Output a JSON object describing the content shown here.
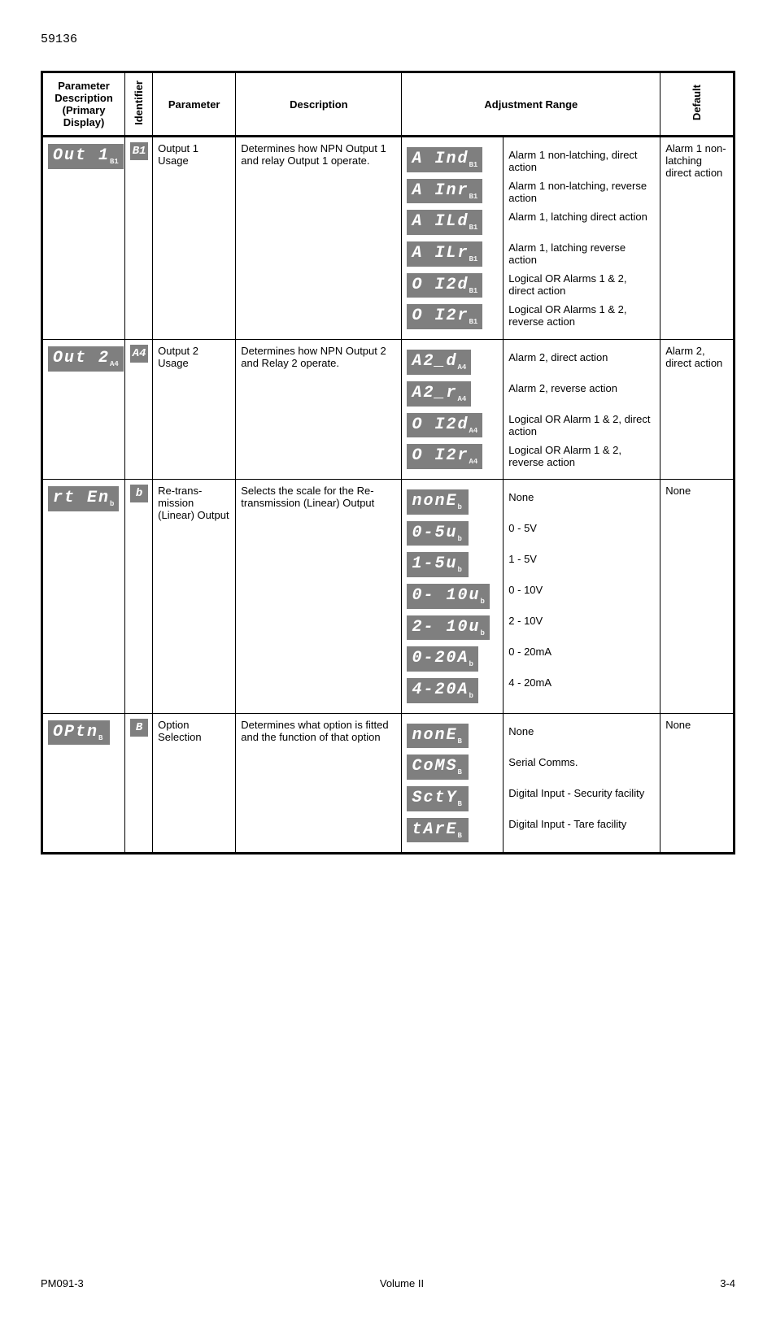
{
  "page_top": "59136",
  "headers": {
    "param_desc": "Parameter Description (Primary Display)",
    "identifier": "Identifier",
    "parameter": "Parameter",
    "description": "Description",
    "adjustment": "Adjustment Range",
    "default": "Default"
  },
  "rows": [
    {
      "primary_seg": "Out  1",
      "primary_dot": "B1",
      "id_icon": "B1",
      "parameter": "Output 1 Usage",
      "description": "Determines how NPN Output 1 and relay Output 1 operate.",
      "options": [
        {
          "seg": "A Ind",
          "dot": "B1",
          "meaning": "Alarm 1 non-latching, direct action"
        },
        {
          "seg": "A Inr",
          "dot": "B1",
          "meaning": "Alarm 1 non-latching, reverse action"
        },
        {
          "seg": "A ILd",
          "dot": "B1",
          "meaning": "Alarm 1, latching direct action"
        },
        {
          "seg": "A ILr",
          "dot": "B1",
          "meaning": "Alarm 1, latching reverse action"
        },
        {
          "seg": "O I2d",
          "dot": "B1",
          "meaning": "Logical OR Alarms 1 & 2, direct action"
        },
        {
          "seg": "O I2r",
          "dot": "B1",
          "meaning": "Logical OR Alarms 1 & 2, reverse action"
        }
      ],
      "default": "Alarm 1 non-latching direct action"
    },
    {
      "primary_seg": "Out 2",
      "primary_dot": "A4",
      "id_icon": "A4",
      "parameter": "Output 2 Usage",
      "description": "Determines how NPN Output 2 and Relay 2 operate.",
      "options": [
        {
          "seg": "A2_d",
          "dot": "A4",
          "meaning": "Alarm 2, direct action"
        },
        {
          "seg": "A2_r",
          "dot": "A4",
          "meaning": "Alarm 2, reverse action"
        },
        {
          "seg": "O I2d",
          "dot": "A4",
          "meaning": "Logical OR Alarm 1 & 2, direct action"
        },
        {
          "seg": "O I2r",
          "dot": "A4",
          "meaning": "Logical OR Alarm 1 & 2, reverse action"
        }
      ],
      "default": "Alarm 2, direct action"
    },
    {
      "primary_seg": "rt En",
      "primary_dot": "b",
      "id_icon": "b",
      "parameter": "Re-trans-mission (Linear) Output",
      "description": "Selects the scale for the Re-transmission (Linear) Output",
      "options": [
        {
          "seg": "nonE",
          "dot": "b",
          "meaning": "None"
        },
        {
          "seg": "0-5u",
          "dot": "b",
          "meaning": "0 - 5V"
        },
        {
          "seg": "1-5u",
          "dot": "b",
          "meaning": "1 - 5V"
        },
        {
          "seg": "0- 10u",
          "dot": "b",
          "meaning": "0 - 10V"
        },
        {
          "seg": "2- 10u",
          "dot": "b",
          "meaning": "2 - 10V"
        },
        {
          "seg": "0-20A",
          "dot": "b",
          "meaning": "0 - 20mA"
        },
        {
          "seg": "4-20A",
          "dot": "b",
          "meaning": "4 - 20mA"
        }
      ],
      "default": "None"
    },
    {
      "primary_seg": "OPtn",
      "primary_dot": "B",
      "id_icon": "B",
      "parameter": "Option Selection",
      "description": "Determines what option is fitted and the function of that option",
      "options": [
        {
          "seg": "nonE",
          "dot": "B",
          "meaning": "None"
        },
        {
          "seg": "CoMS",
          "dot": "B",
          "meaning": "Serial Comms."
        },
        {
          "seg": "SctY",
          "dot": "B",
          "meaning": "Digital Input - Security facility"
        },
        {
          "seg": "tArE",
          "dot": "B",
          "meaning": "Digital Input - Tare facility"
        }
      ],
      "default": "None"
    }
  ],
  "footer": {
    "left": "PM091-3",
    "center": "Volume II",
    "right": "3-4"
  }
}
